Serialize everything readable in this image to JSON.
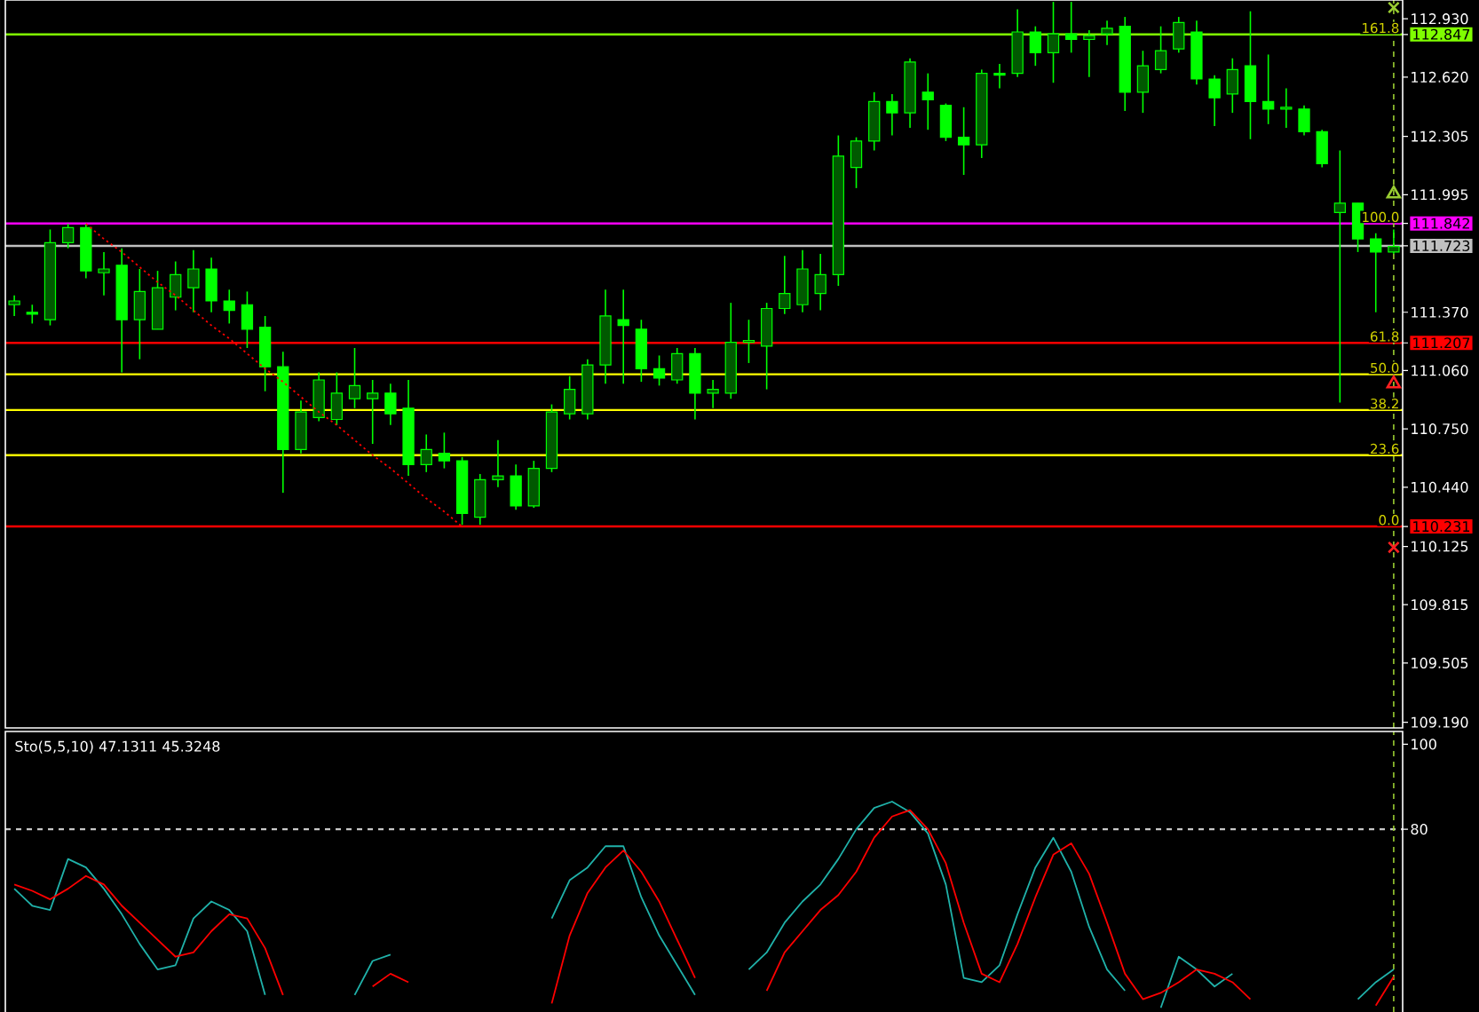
{
  "chart_data": [
    {
      "type": "candlestick",
      "color": "#00ff00",
      "tick_labels": "y",
      "categories": [
        null,
        null,
        null,
        null,
        null,
        null,
        null,
        null,
        null,
        null,
        null,
        null,
        null,
        null,
        null,
        null,
        null,
        null,
        null,
        null,
        null,
        null,
        null,
        null,
        null,
        null,
        null,
        null,
        null,
        null,
        null,
        null,
        null,
        null,
        null,
        null,
        null,
        null,
        null,
        null,
        null,
        null,
        null,
        null,
        null,
        null,
        null,
        null,
        null,
        null,
        null,
        null,
        null,
        null,
        null,
        null,
        null,
        null,
        null,
        null,
        null,
        null,
        null,
        null,
        null,
        null,
        null,
        null,
        null,
        null,
        null,
        null,
        null,
        null,
        null,
        null,
        null,
        null
      ],
      "ohlc": [
        [
          111.41,
          111.46,
          111.35,
          111.43
        ],
        [
          111.37,
          111.41,
          111.31,
          111.36
        ],
        [
          111.33,
          111.81,
          111.3,
          111.74
        ],
        [
          111.74,
          111.84,
          111.71,
          111.82
        ],
        [
          111.82,
          111.84,
          111.55,
          111.59
        ],
        [
          111.58,
          111.69,
          111.46,
          111.6
        ],
        [
          111.62,
          111.71,
          111.05,
          111.33
        ],
        [
          111.33,
          111.6,
          111.12,
          111.48
        ],
        [
          111.28,
          111.59,
          111.28,
          111.5
        ],
        [
          111.45,
          111.64,
          111.38,
          111.57
        ],
        [
          111.5,
          111.7,
          111.37,
          111.6
        ],
        [
          111.6,
          111.66,
          111.37,
          111.43
        ],
        [
          111.43,
          111.49,
          111.31,
          111.38
        ],
        [
          111.41,
          111.48,
          111.18,
          111.28
        ],
        [
          111.29,
          111.35,
          110.95,
          111.08
        ],
        [
          111.08,
          111.16,
          110.41,
          110.64
        ],
        [
          110.64,
          110.9,
          110.62,
          110.84
        ],
        [
          110.81,
          111.05,
          110.79,
          111.01
        ],
        [
          110.8,
          111.05,
          110.77,
          110.94
        ],
        [
          110.91,
          111.18,
          110.86,
          110.98
        ],
        [
          110.91,
          111.01,
          110.67,
          110.94
        ],
        [
          110.94,
          110.99,
          110.77,
          110.83
        ],
        [
          110.86,
          111.01,
          110.5,
          110.56
        ],
        [
          110.56,
          110.72,
          110.52,
          110.64
        ],
        [
          110.62,
          110.73,
          110.54,
          110.58
        ],
        [
          110.58,
          110.6,
          110.24,
          110.3
        ],
        [
          110.28,
          110.51,
          110.24,
          110.48
        ],
        [
          110.48,
          110.69,
          110.44,
          110.5
        ],
        [
          110.5,
          110.56,
          110.32,
          110.34
        ],
        [
          110.34,
          110.58,
          110.33,
          110.54
        ],
        [
          110.54,
          110.88,
          110.52,
          110.84
        ],
        [
          110.83,
          111.03,
          110.8,
          110.96
        ],
        [
          110.83,
          111.12,
          110.8,
          111.09
        ],
        [
          111.09,
          111.49,
          110.99,
          111.35
        ],
        [
          111.33,
          111.49,
          110.99,
          111.3
        ],
        [
          111.28,
          111.33,
          111.0,
          111.07
        ],
        [
          111.07,
          111.14,
          110.98,
          111.02
        ],
        [
          111.01,
          111.18,
          110.99,
          111.15
        ],
        [
          111.15,
          111.18,
          110.8,
          110.94
        ],
        [
          110.94,
          111.01,
          110.86,
          110.96
        ],
        [
          110.94,
          111.42,
          110.91,
          111.21
        ],
        [
          111.21,
          111.33,
          111.1,
          111.22
        ],
        [
          111.19,
          111.42,
          110.96,
          111.39
        ],
        [
          111.39,
          111.67,
          111.36,
          111.47
        ],
        [
          111.41,
          111.7,
          111.37,
          111.6
        ],
        [
          111.47,
          111.68,
          111.38,
          111.57
        ],
        [
          111.57,
          112.31,
          111.51,
          112.2
        ],
        [
          112.14,
          112.3,
          112.03,
          112.28
        ],
        [
          112.28,
          112.54,
          112.23,
          112.49
        ],
        [
          112.49,
          112.53,
          112.31,
          112.43
        ],
        [
          112.43,
          112.72,
          112.35,
          112.7
        ],
        [
          112.54,
          112.64,
          112.34,
          112.5
        ],
        [
          112.47,
          112.48,
          112.28,
          112.3
        ],
        [
          112.3,
          112.46,
          112.1,
          112.26
        ],
        [
          112.26,
          112.66,
          112.19,
          112.64
        ],
        [
          112.64,
          112.69,
          112.56,
          112.63
        ],
        [
          112.64,
          112.98,
          112.62,
          112.86
        ],
        [
          112.86,
          112.89,
          112.68,
          112.75
        ],
        [
          112.75,
          113.02,
          112.59,
          112.85
        ],
        [
          112.85,
          113.02,
          112.75,
          112.82
        ],
        [
          112.82,
          112.87,
          112.62,
          112.84
        ],
        [
          112.85,
          112.92,
          112.79,
          112.88
        ],
        [
          112.89,
          112.94,
          112.44,
          112.54
        ],
        [
          112.54,
          112.76,
          112.43,
          112.68
        ],
        [
          112.66,
          112.89,
          112.64,
          112.76
        ],
        [
          112.77,
          112.94,
          112.75,
          112.91
        ],
        [
          112.86,
          112.92,
          112.58,
          112.61
        ],
        [
          112.61,
          112.63,
          112.36,
          112.51
        ],
        [
          112.53,
          112.72,
          112.43,
          112.66
        ],
        [
          112.68,
          112.97,
          112.29,
          112.49
        ],
        [
          112.49,
          112.74,
          112.37,
          112.45
        ],
        [
          112.45,
          112.56,
          112.35,
          112.46
        ],
        [
          112.45,
          112.47,
          112.31,
          112.33
        ],
        [
          112.33,
          112.34,
          112.14,
          112.16
        ],
        [
          111.9,
          112.23,
          110.89,
          111.95
        ],
        [
          111.95,
          111.95,
          111.69,
          111.76
        ],
        [
          111.76,
          111.79,
          111.37,
          111.69
        ],
        [
          111.69,
          111.81,
          111.68,
          111.72
        ]
      ],
      "ylim": [
        109.16,
        113.03
      ],
      "yticks": [
        {
          "value": 112.93,
          "label": "112.930"
        },
        {
          "value": 112.847,
          "label": "112.847"
        },
        {
          "value": 112.62,
          "label": "112.620"
        },
        {
          "value": 112.305,
          "label": "112.305"
        },
        {
          "value": 111.995,
          "label": "111.995"
        },
        {
          "value": 111.842,
          "label": "111.842"
        },
        {
          "value": 111.723,
          "label": "111.723"
        },
        {
          "value": 111.37,
          "label": "111.370"
        },
        {
          "value": 111.207,
          "label": "111.207"
        },
        {
          "value": 111.06,
          "label": "111.060"
        },
        {
          "value": 110.75,
          "label": "110.750"
        },
        {
          "value": 110.44,
          "label": "110.440"
        },
        {
          "value": 110.231,
          "label": "110.231"
        },
        {
          "value": 110.125,
          "label": "110.125"
        },
        {
          "value": 109.815,
          "label": "109.815"
        },
        {
          "value": 109.505,
          "label": "109.505"
        },
        {
          "value": 109.19,
          "label": "109.190"
        }
      ],
      "ref_lines": [
        {
          "axis": "y",
          "value": 112.847,
          "color": "#80ff00"
        },
        {
          "axis": "y",
          "value": 111.842,
          "color": "#ff00ff"
        },
        {
          "axis": "y",
          "value": 111.723,
          "color": "#c0c0c0"
        },
        {
          "axis": "y",
          "value": 111.207,
          "color": "#ff0000"
        },
        {
          "axis": "y",
          "value": 111.04,
          "color": "#ffff00"
        },
        {
          "axis": "y",
          "value": 110.85,
          "color": "#ffff00"
        },
        {
          "axis": "y",
          "value": 110.61,
          "color": "#ffff00"
        },
        {
          "axis": "y",
          "value": 110.231,
          "color": "#ff0000"
        }
      ],
      "annotations": [
        {
          "text": "161.8",
          "y": 112.847
        },
        {
          "text": "100.0",
          "y": 111.842
        },
        {
          "text": "61.8",
          "y": 111.207
        },
        {
          "text": "50.0",
          "y": 111.04
        },
        {
          "text": "38.2",
          "y": 110.85
        },
        {
          "text": "23.6",
          "y": 110.61
        },
        {
          "text": "0.0",
          "y": 110.231
        }
      ],
      "series": [
        {
          "type": "line",
          "color": "#ff0000",
          "line_style": "dotted",
          "values": [
            null,
            null,
            null,
            null,
            111.84,
            111.76,
            111.69,
            111.61,
            111.53,
            111.46,
            111.38,
            111.3,
            111.23,
            111.15,
            111.07,
            111.0,
            110.92,
            110.84,
            110.77,
            110.69,
            110.61,
            110.54,
            110.46,
            110.38,
            110.31,
            110.23,
            null,
            null,
            null,
            null,
            null,
            null,
            null,
            null,
            null,
            null,
            null,
            null,
            null,
            null,
            null,
            null,
            null,
            null,
            null,
            null,
            null,
            null,
            null,
            null,
            null,
            null,
            null,
            null,
            null,
            null,
            null,
            null,
            null,
            null,
            null,
            null,
            null,
            null,
            null,
            null,
            null,
            null,
            null,
            null,
            null,
            null,
            null,
            null,
            null,
            null,
            null,
            null
          ]
        },
        {
          "type": "scatter",
          "marker": "cross",
          "color": "#9acd32",
          "values": [
            null,
            null,
            null,
            null,
            null,
            null,
            null,
            null,
            null,
            null,
            null,
            null,
            null,
            null,
            null,
            null,
            null,
            null,
            null,
            null,
            null,
            null,
            null,
            null,
            null,
            null,
            null,
            null,
            null,
            null,
            null,
            null,
            null,
            null,
            null,
            null,
            null,
            null,
            null,
            null,
            null,
            null,
            null,
            null,
            null,
            null,
            null,
            null,
            null,
            null,
            null,
            null,
            null,
            null,
            null,
            null,
            null,
            null,
            null,
            null,
            null,
            null,
            null,
            null,
            null,
            null,
            null,
            null,
            null,
            null,
            null,
            null,
            null,
            null,
            null,
            null,
            null,
            112.99
          ]
        },
        {
          "type": "scatter",
          "marker": "cross",
          "color": "#ff2020",
          "values": [
            null,
            null,
            null,
            null,
            null,
            null,
            null,
            null,
            null,
            null,
            null,
            null,
            null,
            null,
            null,
            null,
            null,
            null,
            null,
            null,
            null,
            null,
            null,
            null,
            null,
            null,
            null,
            null,
            null,
            null,
            null,
            null,
            null,
            null,
            null,
            null,
            null,
            null,
            null,
            null,
            null,
            null,
            null,
            null,
            null,
            null,
            null,
            null,
            null,
            null,
            null,
            null,
            null,
            null,
            null,
            null,
            null,
            null,
            null,
            null,
            null,
            null,
            null,
            null,
            null,
            null,
            null,
            null,
            null,
            null,
            null,
            null,
            null,
            null,
            null,
            null,
            null,
            110.12
          ]
        },
        {
          "type": "scatter",
          "marker": "triangle",
          "color": "#9acd32",
          "values": [
            null,
            null,
            null,
            null,
            null,
            null,
            null,
            null,
            null,
            null,
            null,
            null,
            null,
            null,
            null,
            null,
            null,
            null,
            null,
            null,
            null,
            null,
            null,
            null,
            null,
            null,
            null,
            null,
            null,
            null,
            null,
            null,
            null,
            null,
            null,
            null,
            null,
            null,
            null,
            null,
            null,
            null,
            null,
            null,
            null,
            null,
            null,
            null,
            null,
            null,
            null,
            null,
            null,
            null,
            null,
            null,
            null,
            null,
            null,
            null,
            null,
            null,
            null,
            null,
            null,
            null,
            null,
            null,
            null,
            null,
            null,
            null,
            null,
            null,
            null,
            null,
            null,
            112.0
          ]
        },
        {
          "type": "scatter",
          "marker": "triangle",
          "color": "#ff2020",
          "values": [
            null,
            null,
            null,
            null,
            null,
            null,
            null,
            null,
            null,
            null,
            null,
            null,
            null,
            null,
            null,
            null,
            null,
            null,
            null,
            null,
            null,
            null,
            null,
            null,
            null,
            null,
            null,
            null,
            null,
            null,
            null,
            null,
            null,
            null,
            null,
            null,
            null,
            null,
            null,
            null,
            null,
            null,
            null,
            null,
            null,
            null,
            null,
            null,
            null,
            null,
            null,
            null,
            null,
            null,
            null,
            null,
            null,
            null,
            null,
            null,
            null,
            null,
            null,
            null,
            null,
            null,
            null,
            null,
            null,
            null,
            null,
            null,
            null,
            null,
            null,
            null,
            null,
            110.99
          ]
        }
      ]
    },
    {
      "type": "line",
      "title": "Sto(5,5,10) 47.1311 45.3248",
      "tick_labels": "y",
      "categories": [
        null,
        null,
        null,
        null,
        null,
        null,
        null,
        null,
        null,
        null,
        null,
        null,
        null,
        null,
        null,
        null,
        null,
        null,
        null,
        null,
        null,
        null,
        null,
        null,
        null,
        null,
        null,
        null,
        null,
        null,
        null,
        null,
        null,
        null,
        null,
        null,
        null,
        null,
        null,
        null,
        null,
        null,
        null,
        null,
        null,
        null,
        null,
        null,
        null,
        null,
        null,
        null,
        null,
        null,
        null,
        null,
        null,
        null,
        null,
        null,
        null,
        null,
        null,
        null,
        null,
        null,
        null,
        null,
        null,
        null,
        null,
        null,
        null,
        null,
        null,
        null,
        null,
        null
      ],
      "ylim": [
        37,
        103
      ],
      "yticks": [
        100,
        80
      ],
      "ref_lines": [
        {
          "axis": "y",
          "value": 80,
          "color": "#c8c8c8",
          "line_style": "dashed"
        }
      ],
      "series": [
        {
          "color": "#20b2aa",
          "values": [
            66,
            62,
            61,
            73,
            71,
            66,
            60,
            53,
            47,
            48,
            59,
            63,
            61,
            56,
            41,
            null,
            null,
            null,
            null,
            41,
            49,
            50.5,
            null,
            null,
            null,
            null,
            null,
            null,
            null,
            null,
            59,
            68,
            71,
            76,
            76,
            64,
            55,
            48,
            41,
            null,
            null,
            47,
            51,
            58,
            63,
            67,
            73,
            80,
            85,
            86.5,
            84,
            79,
            67,
            45,
            44,
            48,
            60,
            71,
            78,
            70,
            57,
            47,
            42,
            null,
            38,
            50,
            47,
            43,
            46,
            null,
            null,
            null,
            null,
            null,
            null,
            40,
            44,
            47
          ]
        },
        {
          "color": "#ff0000",
          "values": [
            67,
            65.5,
            63.5,
            66,
            69,
            67,
            62,
            58,
            54,
            50,
            51,
            56,
            60,
            59,
            52,
            41,
            null,
            null,
            null,
            null,
            43,
            46,
            44,
            null,
            null,
            null,
            null,
            null,
            null,
            null,
            39,
            55,
            65,
            71,
            75,
            70,
            63,
            54,
            45,
            null,
            null,
            null,
            42,
            51,
            56,
            61,
            64.5,
            70,
            78,
            83,
            84.5,
            80,
            72,
            58,
            46,
            44,
            53,
            64,
            74,
            76.7,
            69.5,
            58,
            46,
            40,
            41.5,
            44,
            47,
            46,
            44,
            40,
            null,
            null,
            null,
            null,
            null,
            null,
            38.5,
            45.3
          ]
        }
      ]
    }
  ]
}
